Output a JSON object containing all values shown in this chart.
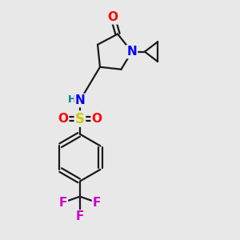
{
  "bg_color": "#e8e8e8",
  "atom_colors": {
    "O": "#ff0000",
    "N": "#0000ff",
    "S": "#cccc00",
    "F": "#cc00cc",
    "H": "#008080",
    "C": "#1a1a1a"
  },
  "bond_color": "#1a1a1a",
  "bond_width": 1.6,
  "font_size_atoms": 11,
  "font_size_H": 9
}
